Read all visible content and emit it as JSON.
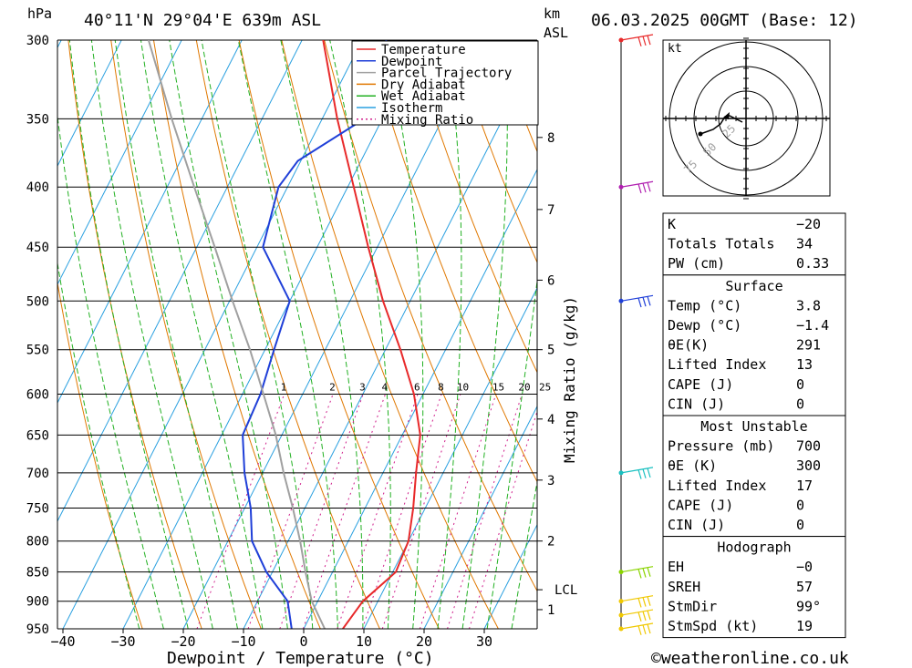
{
  "header": {
    "hpa_label": "hPa",
    "location": "40°11'N 29°04'E 639m ASL",
    "km_label": "km",
    "asl_label": "ASL",
    "datetime": "06.03.2025 00GMT (Base: 12)"
  },
  "colors": {
    "temperature": "#e8292a",
    "dewpoint": "#1f3fd8",
    "parcel": "#a0a0a0",
    "dry_adiabat": "#e07800",
    "wet_adiabat": "#21b021",
    "isotherm": "#2aa0e0",
    "mixing_ratio": "#d0208c"
  },
  "chart_data": {
    "type": "line",
    "title": "",
    "xlabel": "Dewpoint / Temperature (°C)",
    "ylabel": "hPa",
    "right_label": "Mixing Ratio (g/kg)",
    "x_ticks": [
      "−40",
      "−30",
      "−20",
      "−10",
      "0",
      "10",
      "20",
      "30"
    ],
    "pressure_levels": [
      300,
      350,
      400,
      450,
      500,
      550,
      600,
      650,
      700,
      750,
      800,
      850,
      900,
      950
    ],
    "km_ticks": [
      {
        "label": "1",
        "p": 915
      },
      {
        "label": "2",
        "p": 800
      },
      {
        "label": "3",
        "p": 710
      },
      {
        "label": "4",
        "p": 630
      },
      {
        "label": "5",
        "p": 550
      },
      {
        "label": "6",
        "p": 480
      },
      {
        "label": "7",
        "p": 418
      },
      {
        "label": "8",
        "p": 363
      }
    ],
    "lcl": {
      "label": "LCL",
      "p": 880
    },
    "mixing_ratio_labels": [
      "1",
      "2",
      "3",
      "4",
      "6",
      "8",
      "10",
      "15",
      "20",
      "25"
    ],
    "legend": [
      "Temperature",
      "Dewpoint",
      "Parcel Trajectory",
      "Dry Adiabat",
      "Wet Adiabat",
      "Isotherm",
      "Mixing Ratio"
    ],
    "legend_position": "top-right",
    "series": [
      {
        "name": "Temperature",
        "points": [
          [
            950,
            6.5
          ],
          [
            900,
            7.5
          ],
          [
            850,
            10.5
          ],
          [
            800,
            10.0
          ],
          [
            750,
            8.0
          ],
          [
            700,
            5.5
          ],
          [
            650,
            3.0
          ],
          [
            600,
            -1.5
          ],
          [
            550,
            -7.5
          ],
          [
            500,
            -14.5
          ],
          [
            450,
            -21.5
          ],
          [
            400,
            -29.0
          ],
          [
            350,
            -37.5
          ],
          [
            300,
            -46.5
          ]
        ]
      },
      {
        "name": "Dewpoint",
        "points": [
          [
            950,
            -2.0
          ],
          [
            900,
            -5.0
          ],
          [
            850,
            -11.0
          ],
          [
            800,
            -16.0
          ],
          [
            750,
            -19.0
          ],
          [
            700,
            -23.0
          ],
          [
            650,
            -26.5
          ],
          [
            600,
            -27.0
          ],
          [
            550,
            -28.5
          ],
          [
            500,
            -30.0
          ],
          [
            450,
            -39.0
          ],
          [
            400,
            -41.5
          ],
          [
            380,
            -40.5
          ],
          [
            350,
            -33.0
          ],
          [
            300,
            -36.0
          ]
        ]
      },
      {
        "name": "Parcel Trajectory",
        "points": [
          [
            950,
            3.5
          ],
          [
            900,
            -1.0
          ],
          [
            850,
            -4.5
          ],
          [
            800,
            -8.0
          ],
          [
            750,
            -12.0
          ],
          [
            700,
            -16.5
          ],
          [
            650,
            -21.0
          ],
          [
            600,
            -26.5
          ],
          [
            550,
            -32.5
          ],
          [
            500,
            -39.5
          ],
          [
            450,
            -47.0
          ],
          [
            400,
            -55.5
          ],
          [
            350,
            -65.0
          ],
          [
            300,
            -75.5
          ]
        ]
      }
    ]
  },
  "wind_profile": [
    {
      "p": 300,
      "color": "#e8292a"
    },
    {
      "p": 400,
      "color": "#b01fb0"
    },
    {
      "p": 500,
      "color": "#1f3fd8"
    },
    {
      "p": 700,
      "color": "#19c0c0"
    },
    {
      "p": 850,
      "color": "#8ad400"
    },
    {
      "p": 900,
      "color": "#f0c800"
    },
    {
      "p": 925,
      "color": "#f0c800"
    },
    {
      "p": 950,
      "color": "#f0c800"
    }
  ],
  "hodograph": {
    "unit": "kt",
    "rings": [
      "25",
      "50",
      "75"
    ]
  },
  "indices": {
    "top": [
      {
        "label": "K",
        "value": "−20"
      },
      {
        "label": "Totals Totals",
        "value": "34"
      },
      {
        "label": "PW (cm)",
        "value": "0.33"
      }
    ],
    "surface_title": "Surface",
    "surface": [
      {
        "label": "Temp (°C)",
        "value": "3.8"
      },
      {
        "label": "Dewp (°C)",
        "value": "−1.4"
      },
      {
        "label": "θE(K)",
        "value": "291"
      },
      {
        "label": "Lifted Index",
        "value": "13"
      },
      {
        "label": "CAPE (J)",
        "value": "0"
      },
      {
        "label": "CIN (J)",
        "value": "0"
      }
    ],
    "mu_title": "Most Unstable",
    "mu": [
      {
        "label": "Pressure (mb)",
        "value": "700"
      },
      {
        "label": "θE (K)",
        "value": "300"
      },
      {
        "label": "Lifted Index",
        "value": "17"
      },
      {
        "label": "CAPE (J)",
        "value": "0"
      },
      {
        "label": "CIN (J)",
        "value": "0"
      }
    ],
    "hodo_title": "Hodograph",
    "hodo": [
      {
        "label": "EH",
        "value": "−0"
      },
      {
        "label": "SREH",
        "value": "57"
      },
      {
        "label": "StmDir",
        "value": "99°"
      },
      {
        "label": "StmSpd (kt)",
        "value": "19"
      }
    ]
  },
  "footer": {
    "copyright": "©weatheronline.co.uk"
  }
}
